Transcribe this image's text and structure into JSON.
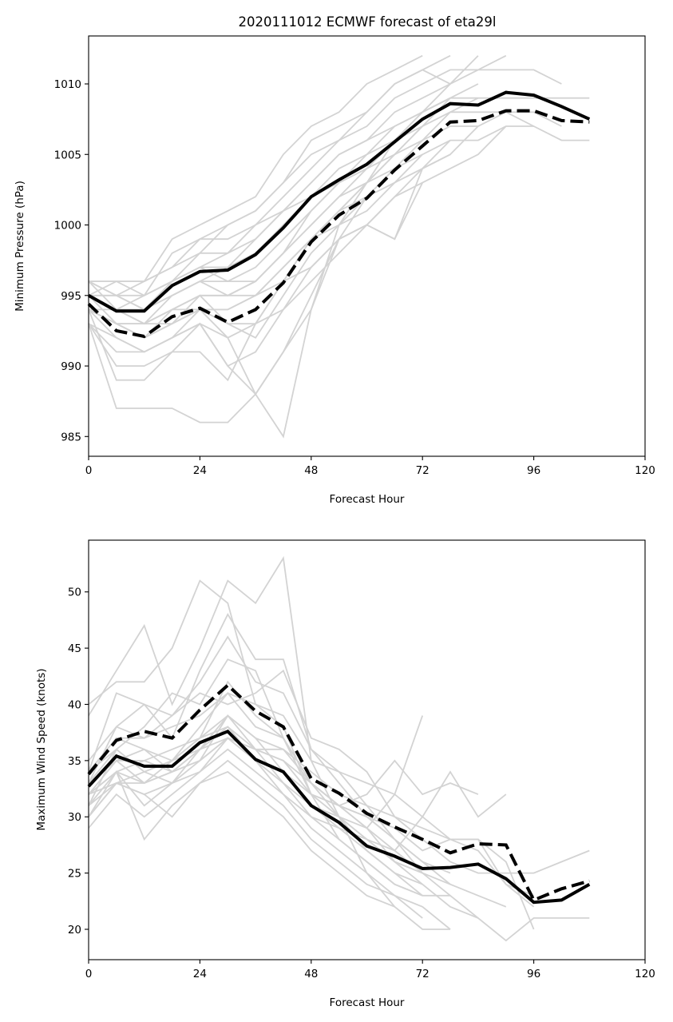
{
  "chart_data": [
    {
      "type": "line",
      "title": "2020111012 ECMWF forecast of eta29l",
      "xlabel": "Forecast Hour",
      "ylabel": "Minimum Pressure (hPa)",
      "xlim": [
        0,
        120
      ],
      "ylim": [
        983.6,
        1013.4
      ],
      "xticks": [
        0,
        24,
        48,
        72,
        96,
        120
      ],
      "yticks": [
        985,
        990,
        995,
        1000,
        1005,
        1010
      ],
      "grid": false,
      "legend": "none",
      "x": [
        0,
        6,
        12,
        18,
        24,
        30,
        36,
        42,
        48,
        54,
        60,
        66,
        72,
        78,
        84,
        90,
        96,
        102,
        108
      ],
      "series": [
        {
          "name": "deterministic",
          "style": "solid",
          "color": "#000000",
          "values": [
            995.0,
            993.9,
            993.9,
            995.7,
            996.7,
            996.8,
            997.9,
            999.8,
            1002.0,
            1003.2,
            1004.3,
            1005.9,
            1007.5,
            1008.6,
            1008.5,
            1009.4,
            1009.2,
            1008.4,
            1007.5
          ]
        },
        {
          "name": "ensemble-mean",
          "style": "dashed",
          "color": "#000000",
          "values": [
            994.4,
            992.5,
            992.1,
            993.5,
            994.1,
            993.1,
            994.0,
            995.9,
            998.8,
            1000.7,
            1001.9,
            1003.9,
            1005.6,
            1007.3,
            1007.4,
            1008.1,
            1008.1,
            1007.4,
            1007.3
          ]
        }
      ],
      "ensemble_color": "#d3d3d3",
      "ensemble": [
        [
          996,
          996,
          996,
          999,
          1000,
          1001,
          1002,
          1005,
          1007,
          1008,
          1010,
          1011,
          1012
        ],
        [
          995,
          995,
          995,
          998,
          999,
          1000,
          1001,
          1003,
          1006,
          1007,
          1008,
          1010,
          1011,
          1012
        ],
        [
          996,
          995,
          996,
          997,
          999,
          999,
          1000,
          1002,
          1004,
          1006,
          1008,
          1010,
          1011,
          1010,
          1012
        ],
        [
          995,
          994,
          995,
          996,
          998,
          1000,
          1001,
          1003,
          1005,
          1006,
          1007,
          1009,
          1010,
          1011,
          1011,
          1012
        ],
        [
          994,
          994,
          993,
          995,
          996,
          997,
          999,
          1001,
          1003,
          1005,
          1006,
          1008,
          1009,
          1010,
          1011,
          1011,
          1011,
          1010
        ],
        [
          995,
          996,
          996,
          997,
          998,
          998,
          1000,
          1001,
          1002,
          1004,
          1005,
          1007,
          1008,
          1009,
          1009,
          1009,
          1009,
          1009,
          1009,
          1009,
          1009
        ],
        [
          994,
          993,
          993,
          994,
          995,
          995,
          996,
          998,
          1000,
          1002,
          1004,
          1005,
          1007,
          1008,
          1008,
          1008,
          1007,
          1006,
          1006
        ],
        [
          993,
          992,
          991,
          992,
          994,
          994,
          995,
          997,
          999,
          1001,
          1003,
          1004,
          1006,
          1007,
          1007,
          1008,
          1008,
          1007
        ],
        [
          994,
          993,
          992,
          993,
          995,
          993,
          992,
          995,
          998,
          1000,
          1002,
          1003,
          1005,
          1006,
          1006,
          1007,
          1007
        ],
        [
          996,
          995,
          994,
          995,
          996,
          996,
          997,
          999,
          1001,
          1003,
          1004,
          1006,
          1008,
          1009
        ],
        [
          993,
          991,
          991,
          992,
          993,
          992,
          993,
          996,
          999,
          1001,
          1003,
          1005,
          1006,
          1008,
          1009
        ],
        [
          995,
          994,
          994,
          996,
          997,
          997,
          998,
          1000,
          1002,
          1003,
          1005,
          1006,
          1007
        ],
        [
          994,
          993,
          993,
          993,
          994,
          994,
          995,
          997,
          999,
          1000,
          1001,
          1003,
          1004,
          1005,
          1007
        ],
        [
          993,
          990,
          990,
          991,
          993,
          990,
          991,
          994,
          997,
          999,
          1000,
          1002,
          1004,
          1005
        ],
        [
          994,
          989,
          989,
          991,
          991,
          989,
          993,
          996,
          999,
          1001,
          1002,
          1004
        ],
        [
          993,
          987,
          987,
          987,
          986,
          986,
          988,
          991,
          995,
          999,
          1002,
          1004,
          1005
        ],
        [
          994,
          992,
          991,
          992,
          993,
          990,
          988,
          985,
          994,
          1000,
          1003,
          1006,
          1008,
          1010
        ],
        [
          995,
          994,
          993,
          994,
          994,
          992,
          988,
          991,
          994,
          999,
          1000,
          999,
          1003
        ],
        [
          996,
          996,
          995,
          996,
          997,
          996,
          996,
          998,
          1001,
          1003,
          1004,
          1006,
          1007,
          1009
        ],
        [
          995,
          995,
          994,
          995,
          996,
          995,
          995,
          996,
          997,
          999,
          1000,
          999,
          1004,
          1006
        ],
        [
          994,
          993,
          992,
          993,
          994,
          993,
          993,
          994,
          996,
          998,
          1000,
          1002,
          1003,
          1004,
          1005,
          1007
        ],
        [
          996,
          994,
          994,
          996,
          997,
          998,
          999,
          1001,
          1003,
          1005,
          1006,
          1007,
          1008,
          1009,
          1010
        ],
        [
          995,
          993,
          992,
          994,
          995,
          995,
          996,
          998,
          1000,
          1002,
          1003,
          1005,
          1007
        ]
      ]
    },
    {
      "type": "line",
      "title": "",
      "xlabel": "Forecast Hour",
      "ylabel": "Maximum Wind Speed (knots)",
      "xlim": [
        0,
        120
      ],
      "ylim": [
        17.3,
        54.6
      ],
      "xticks": [
        0,
        24,
        48,
        72,
        96,
        120
      ],
      "yticks": [
        20,
        25,
        30,
        35,
        40,
        45,
        50
      ],
      "grid": false,
      "legend": "none",
      "x": [
        0,
        6,
        12,
        18,
        24,
        30,
        36,
        42,
        48,
        54,
        60,
        66,
        72,
        78,
        84,
        90,
        96,
        102,
        108
      ],
      "series": [
        {
          "name": "deterministic",
          "style": "solid",
          "color": "#000000",
          "values": [
            32.7,
            35.4,
            34.5,
            34.5,
            36.6,
            37.6,
            35.1,
            34.0,
            31.0,
            29.5,
            27.4,
            26.5,
            25.4,
            25.5,
            25.8,
            24.5,
            22.4,
            22.6,
            24.0
          ]
        },
        {
          "name": "ensemble-mean",
          "style": "dashed",
          "color": "#000000",
          "values": [
            33.8,
            36.8,
            37.6,
            37.0,
            39.5,
            41.7,
            39.4,
            38.0,
            33.4,
            32.1,
            30.3,
            29.1,
            28.0,
            26.8,
            27.6,
            27.5,
            22.6,
            23.6,
            24.3
          ]
        }
      ],
      "ensemble_color": "#d3d3d3",
      "ensemble": [
        [
          39,
          43,
          47,
          40,
          45,
          51,
          49,
          53,
          35,
          30,
          25,
          22
        ],
        [
          40,
          42,
          42,
          45,
          51,
          49,
          40,
          38,
          32,
          28,
          26,
          24,
          23
        ],
        [
          34,
          41,
          40,
          37,
          43,
          48,
          44,
          44,
          36,
          33,
          30,
          28,
          25
        ],
        [
          33,
          38,
          40,
          39,
          42,
          46,
          42,
          41,
          36,
          34,
          33,
          32,
          30,
          28,
          27,
          24,
          22
        ],
        [
          31,
          36,
          38,
          41,
          40,
          44,
          43,
          37,
          32,
          31,
          29,
          26,
          25
        ],
        [
          32,
          35,
          35,
          36,
          37,
          42,
          39,
          37,
          33,
          31,
          30,
          28,
          26,
          24
        ],
        [
          34,
          37,
          37,
          38,
          39,
          41,
          40,
          39,
          35,
          34,
          31,
          28,
          26,
          25
        ],
        [
          30,
          33,
          33,
          34,
          35,
          39,
          36,
          35,
          33,
          30,
          27,
          25,
          23
        ],
        [
          29,
          32,
          30,
          32,
          34,
          37,
          35,
          33,
          30,
          28,
          26,
          24,
          23,
          23
        ],
        [
          31,
          34,
          31,
          33,
          36,
          38,
          36,
          35,
          32,
          30,
          28,
          26,
          25,
          23,
          21
        ],
        [
          33,
          36,
          34,
          35,
          37,
          38,
          35,
          34,
          31,
          29,
          27,
          25,
          24
        ],
        [
          32,
          33,
          32,
          33,
          34,
          36,
          34,
          32,
          29,
          27,
          25,
          23,
          22,
          20
        ],
        [
          30,
          34,
          28,
          31,
          33,
          35,
          33,
          31,
          28,
          26,
          24,
          23,
          21
        ],
        [
          33,
          35,
          36,
          34,
          36,
          39,
          37,
          34,
          32,
          31,
          29,
          27,
          25,
          24,
          23,
          22
        ],
        [
          34,
          36,
          34,
          33,
          35,
          37,
          36,
          33,
          31,
          30,
          28,
          26,
          24,
          22,
          21,
          19,
          21,
          21,
          21,
          21,
          22
        ],
        [
          31,
          33,
          32,
          30,
          33,
          34,
          32,
          30,
          27,
          25,
          23,
          22,
          20,
          20
        ],
        [
          35,
          38,
          37,
          39,
          41,
          40,
          41,
          43,
          37,
          36,
          34,
          30,
          29,
          28,
          28,
          24,
          23
        ],
        [
          32,
          34,
          35,
          34,
          36,
          37,
          36,
          36,
          33,
          31,
          30,
          29,
          27,
          28,
          28,
          26,
          20
        ],
        [
          33,
          35,
          33,
          35,
          37,
          39,
          37,
          36,
          34,
          32,
          31,
          30,
          28,
          26,
          25,
          25,
          25,
          26,
          27
        ],
        [
          34,
          37,
          36,
          35,
          38,
          41,
          38,
          37,
          33,
          31,
          32,
          35,
          32,
          33,
          32
        ],
        [
          32,
          34,
          33,
          34,
          35,
          37,
          35,
          34,
          31,
          30,
          29,
          32,
          39
        ],
        [
          30,
          33,
          34,
          35,
          36,
          38,
          35,
          32,
          30,
          29,
          28,
          27,
          30,
          34,
          30,
          32
        ]
      ]
    }
  ]
}
